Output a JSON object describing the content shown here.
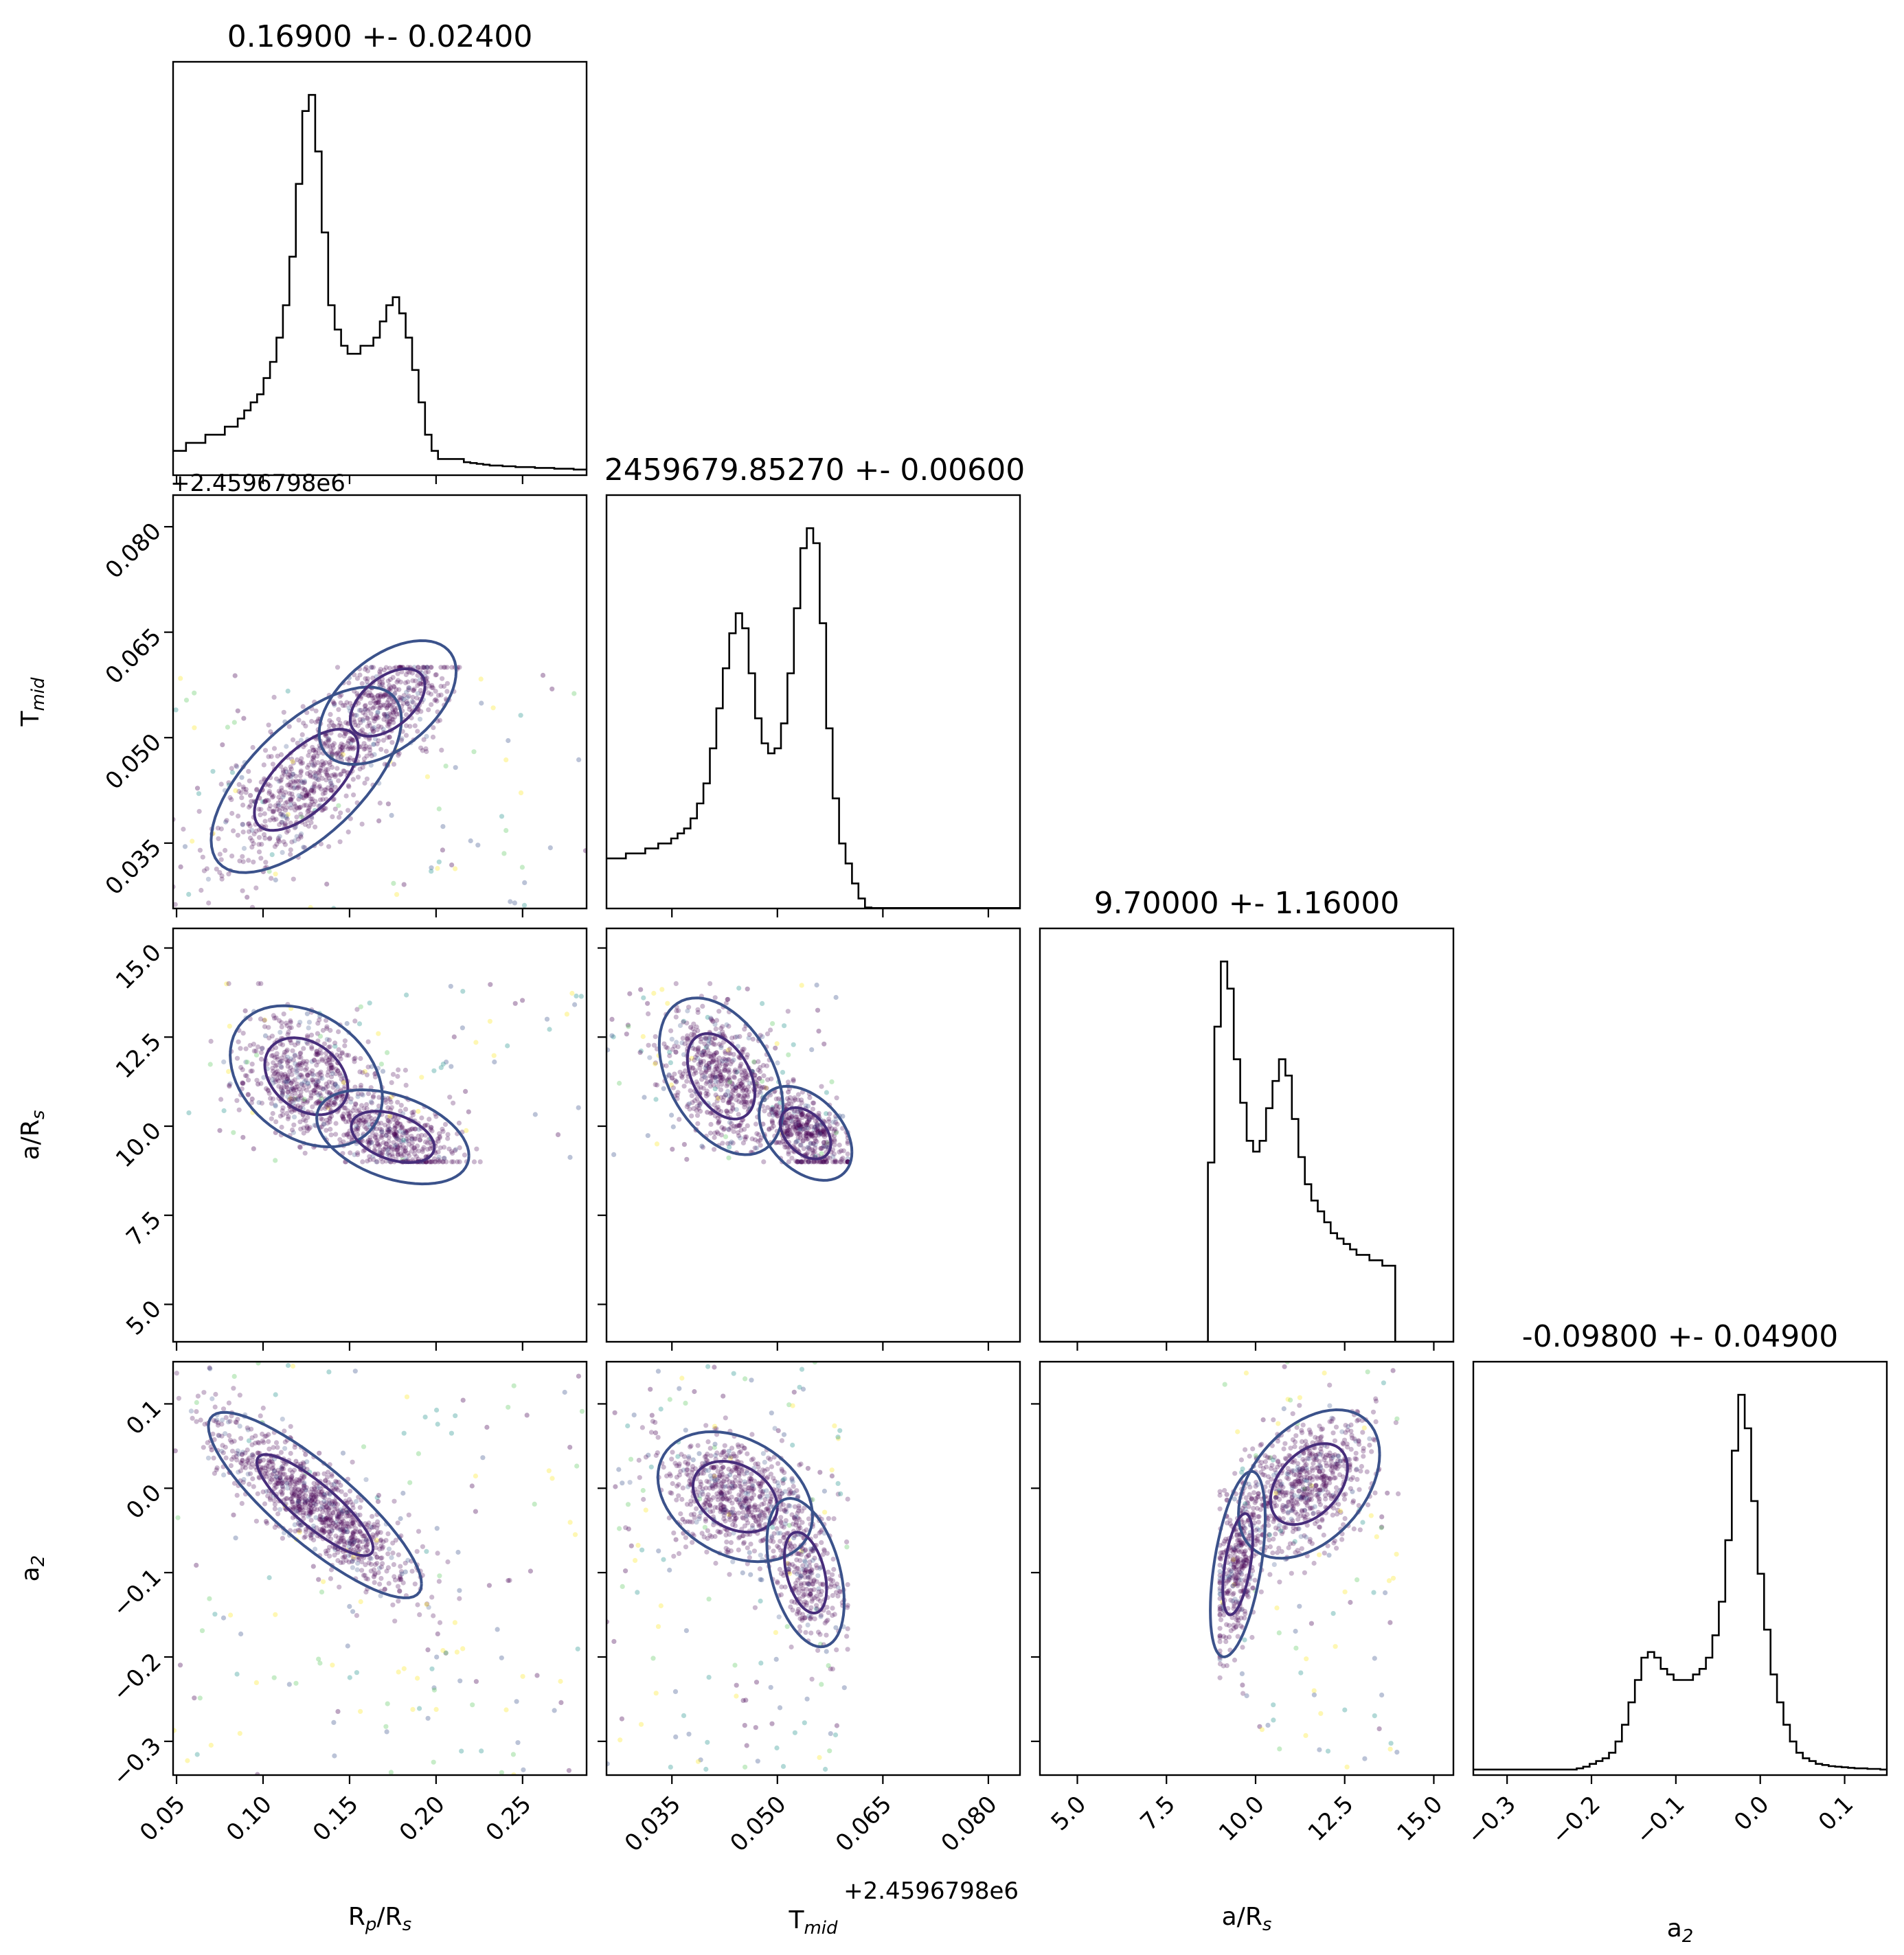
{
  "chart_data": {
    "type": "corner",
    "parameters": [
      {
        "key": "rp",
        "label_main": "R",
        "label_sub": "p",
        "label_tail": "/R",
        "label_tail_sub": "s",
        "title": "0.16900 +- 0.02400",
        "range": [
          0.048,
          0.287
        ],
        "ticks": [
          0.05,
          0.1,
          0.15,
          0.2,
          0.25
        ],
        "tick_labels": [
          "0.05",
          "0.10",
          "0.15",
          "0.20",
          "0.25"
        ]
      },
      {
        "key": "tmid",
        "label_main": "T",
        "label_sub": "mid",
        "label_tail": "",
        "label_tail_sub": "",
        "title": "2459679.85270 +- 0.00600",
        "range": [
          0.0257,
          0.0845
        ],
        "ticks": [
          0.035,
          0.05,
          0.065,
          0.08
        ],
        "tick_labels": [
          "0.035",
          "0.050",
          "0.065",
          "0.080"
        ],
        "offset_text": "+2.4596798e6"
      },
      {
        "key": "ars",
        "label_main": "a/R",
        "label_sub": "s",
        "label_tail": "",
        "label_tail_sub": "",
        "title": "9.70000 +- 1.16000",
        "range": [
          3.95,
          15.55
        ],
        "ticks": [
          5.0,
          7.5,
          10.0,
          12.5,
          15.0
        ],
        "tick_labels": [
          "5.0",
          "7.5",
          "10.0",
          "12.5",
          "15.0"
        ]
      },
      {
        "key": "a2",
        "label_main": "a",
        "label_sub": "2",
        "label_tail": "",
        "label_tail_sub": "",
        "title": "-0.09800 +- 0.04900",
        "range": [
          -0.34,
          0.15
        ],
        "ticks": [
          -0.3,
          -0.2,
          -0.1,
          0.0,
          0.1
        ],
        "tick_labels": [
          "−0.3",
          "−0.2",
          "−0.1",
          "0.0",
          "0.1"
        ]
      }
    ],
    "histograms": [
      {
        "param": "rp",
        "bins": 64,
        "values": [
          3,
          3,
          4,
          4,
          4,
          5,
          5,
          5,
          6,
          6,
          7,
          8,
          9,
          10,
          12,
          14,
          17,
          21,
          27,
          36,
          45,
          47,
          40,
          30,
          21,
          18,
          16,
          15,
          15,
          16,
          16,
          17,
          19,
          21,
          22,
          20,
          17,
          13,
          9,
          5,
          3,
          2,
          2,
          2,
          2,
          1.6,
          1.5,
          1.4,
          1.3,
          1.2,
          1.2,
          1.1,
          1.1,
          1.0,
          1.0,
          1.0,
          0.9,
          0.9,
          0.9,
          0.8,
          0.8,
          0.8,
          0.7,
          0.7
        ]
      },
      {
        "param": "tmid",
        "bins": 64,
        "values": [
          10,
          10,
          10,
          11,
          11,
          11,
          12,
          12,
          13,
          13,
          14,
          15,
          16,
          18,
          21,
          25,
          32,
          40,
          48,
          55,
          59,
          56,
          47,
          38,
          33,
          31,
          32,
          37,
          47,
          60,
          72,
          76,
          73,
          57,
          36,
          22,
          13,
          9,
          5,
          2,
          0.2,
          0.1,
          0.1,
          0.1,
          0.1,
          0.1,
          0.1,
          0.1,
          0.1,
          0.1,
          0.1,
          0.1,
          0.1,
          0.1,
          0.1,
          0.1,
          0.1,
          0.1,
          0.1,
          0.1,
          0.1,
          0.1,
          0.1,
          0.1
        ]
      },
      {
        "param": "ars",
        "bins": 64,
        "values": [
          0,
          0,
          0,
          0,
          0,
          0,
          0,
          0,
          0,
          0,
          0,
          0,
          0,
          0,
          0,
          0,
          0,
          0,
          0,
          0,
          0,
          0,
          0,
          0,
          0,
          0,
          33,
          58,
          70,
          65,
          52,
          44,
          37,
          35,
          37,
          43,
          48,
          52,
          49,
          41,
          34,
          29,
          26,
          24,
          22,
          20,
          19,
          18,
          17,
          16,
          16,
          15,
          15,
          14,
          14,
          0,
          0,
          0,
          0,
          0,
          0,
          0,
          0,
          0
        ]
      },
      {
        "param": "a2",
        "bins": 64,
        "values": [
          1,
          1,
          1,
          1,
          1,
          1,
          1,
          1,
          1,
          1,
          1,
          1,
          1,
          1,
          1,
          1,
          1.2,
          1.5,
          2,
          2.5,
          3,
          4,
          6,
          9,
          13,
          17,
          21,
          22,
          21,
          19,
          18,
          17,
          17,
          17,
          18,
          19,
          21,
          25,
          31,
          42,
          58,
          68,
          62,
          49,
          36,
          26,
          18,
          13,
          9,
          6,
          4,
          3,
          2.5,
          2,
          1.8,
          1.6,
          1.5,
          1.4,
          1.3,
          1.2,
          1.2,
          1.1,
          1.1,
          1.0
        ]
      }
    ],
    "pairs": [
      {
        "x": "rp",
        "y": "tmid",
        "x_sample_range": [
          0.048,
          0.287
        ],
        "y_sample_range": [
          0.0257,
          0.06
        ],
        "clusters": [
          {
            "cx": 0.125,
            "cy": 0.044,
            "sx": 0.025,
            "sy": 0.006,
            "rho": 0.65,
            "weight": 0.55
          },
          {
            "cx": 0.172,
            "cy": 0.055,
            "sx": 0.018,
            "sy": 0.004,
            "rho": 0.5,
            "weight": 0.35
          }
        ]
      },
      {
        "x": "rp",
        "y": "ars",
        "x_sample_range": [
          0.048,
          0.287
        ],
        "y_sample_range": [
          9.0,
          14.0
        ],
        "clusters": [
          {
            "cx": 0.125,
            "cy": 11.4,
            "sx": 0.02,
            "sy": 0.9,
            "rho": -0.3,
            "weight": 0.5
          },
          {
            "cx": 0.175,
            "cy": 9.7,
            "sx": 0.02,
            "sy": 0.6,
            "rho": -0.4,
            "weight": 0.4
          }
        ]
      },
      {
        "x": "tmid",
        "y": "ars",
        "x_sample_range": [
          0.0257,
          0.06
        ],
        "y_sample_range": [
          9.0,
          14.0
        ],
        "clusters": [
          {
            "cx": 0.042,
            "cy": 11.4,
            "sx": 0.004,
            "sy": 1.0,
            "rho": -0.4,
            "weight": 0.5
          },
          {
            "cx": 0.054,
            "cy": 9.8,
            "sx": 0.003,
            "sy": 0.6,
            "rho": -0.4,
            "weight": 0.4
          }
        ]
      },
      {
        "x": "rp",
        "y": "a2",
        "x_sample_range": [
          0.048,
          0.287
        ],
        "y_sample_range": [
          -0.34,
          0.15
        ],
        "clusters": [
          {
            "cx": 0.13,
            "cy": -0.02,
            "sx": 0.028,
            "sy": 0.05,
            "rho": -0.85,
            "weight": 0.85
          }
        ]
      },
      {
        "x": "tmid",
        "y": "a2",
        "x_sample_range": [
          0.0257,
          0.06
        ],
        "y_sample_range": [
          -0.34,
          0.15
        ],
        "clusters": [
          {
            "cx": 0.044,
            "cy": -0.01,
            "sx": 0.005,
            "sy": 0.035,
            "rho": -0.3,
            "weight": 0.55
          },
          {
            "cx": 0.054,
            "cy": -0.1,
            "sx": 0.0025,
            "sy": 0.04,
            "rho": -0.4,
            "weight": 0.3
          }
        ]
      },
      {
        "x": "ars",
        "y": "a2",
        "x_sample_range": [
          9.0,
          14.0
        ],
        "y_sample_range": [
          -0.34,
          0.15
        ],
        "clusters": [
          {
            "cx": 11.5,
            "cy": 0.005,
            "sx": 0.9,
            "sy": 0.04,
            "rho": 0.4,
            "weight": 0.55
          },
          {
            "cx": 9.5,
            "cy": -0.09,
            "sx": 0.35,
            "sy": 0.05,
            "rho": 0.5,
            "weight": 0.35
          }
        ]
      }
    ],
    "colors": {
      "hist_line": "#000000",
      "contour_inner": "#472d7b",
      "contour_outer": "#3b528b",
      "contour_yellow": "#fde725",
      "scatter_main": "#440154",
      "scatter_palette": [
        "#440154",
        "#3b528b",
        "#21918c",
        "#5ec962",
        "#fde725"
      ]
    },
    "grid": false
  }
}
